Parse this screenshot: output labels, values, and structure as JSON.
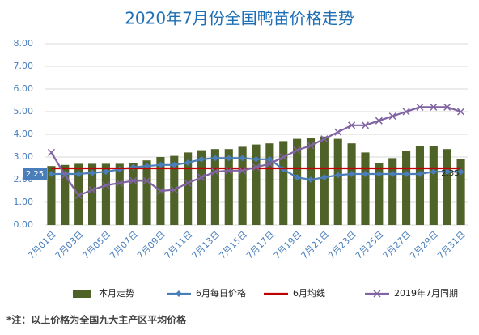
{
  "chart_data": {
    "type": "bar",
    "title": "2020年7月份全国鸭苗价格走势",
    "categories": [
      "7月01日",
      null,
      "7月03日",
      null,
      "7月05日",
      null,
      "7月07日",
      null,
      "7月09日",
      null,
      "7月11日",
      null,
      "7月13日",
      null,
      "7月15日",
      null,
      "7月17日",
      null,
      "7月19日",
      null,
      "7月21日",
      null,
      "7月23日",
      null,
      "7月25日",
      null,
      "7月27日",
      null,
      "7月29日",
      null,
      "7月31日"
    ],
    "series": [
      {
        "name": "本月走势",
        "type": "bar",
        "color": "#4f6228",
        "values": [
          2.6,
          2.65,
          2.7,
          2.7,
          2.7,
          2.7,
          2.75,
          2.85,
          3.0,
          3.05,
          3.2,
          3.3,
          3.35,
          3.35,
          3.45,
          3.55,
          3.6,
          3.7,
          3.8,
          3.85,
          3.9,
          3.8,
          3.6,
          3.2,
          2.75,
          2.95,
          3.25,
          3.5,
          3.5,
          3.35,
          2.9
        ]
      },
      {
        "name": "6月每日价格",
        "type": "line",
        "marker": "diamond",
        "color": "#4a7ebb",
        "values": [
          2.25,
          2.25,
          2.25,
          2.3,
          2.35,
          2.45,
          2.55,
          2.6,
          2.65,
          2.65,
          2.75,
          2.9,
          2.95,
          2.95,
          2.95,
          2.9,
          2.9,
          2.45,
          2.1,
          2.0,
          2.1,
          2.2,
          2.25,
          2.25,
          2.25,
          2.25,
          2.25,
          2.25,
          2.35,
          2.35,
          2.35
        ]
      },
      {
        "name": "6月均线",
        "type": "line",
        "marker": "none",
        "color": "#c00000",
        "values": [
          2.5,
          2.5,
          2.5,
          2.5,
          2.5,
          2.5,
          2.5,
          2.5,
          2.5,
          2.5,
          2.5,
          2.5,
          2.5,
          2.5,
          2.5,
          2.5,
          2.5,
          2.5,
          2.5,
          2.5,
          2.5,
          2.5,
          2.5,
          2.5,
          2.5,
          2.5,
          2.5,
          2.5,
          2.5,
          2.5,
          2.5
        ]
      },
      {
        "name": "2019年7月同期",
        "type": "line",
        "marker": "x",
        "color": "#8064a2",
        "values": [
          3.2,
          2.2,
          1.3,
          1.55,
          1.75,
          1.85,
          1.95,
          1.95,
          1.5,
          1.55,
          1.85,
          2.1,
          2.35,
          2.4,
          2.4,
          2.55,
          2.7,
          3.0,
          3.3,
          3.5,
          3.8,
          4.1,
          4.4,
          4.4,
          4.6,
          4.8,
          5.0,
          5.2,
          5.2,
          5.2,
          5.0
        ]
      }
    ],
    "ylim": [
      0,
      8
    ],
    "yticks": [
      {
        "value": 0,
        "label": "0.00"
      },
      {
        "value": 1,
        "label": "1.00"
      },
      {
        "value": 2,
        "label": "2.00"
      },
      {
        "value": 3,
        "label": "3.00"
      },
      {
        "value": 4,
        "label": "4.00"
      },
      {
        "value": 5,
        "label": "5.00"
      },
      {
        "value": 6,
        "label": "6.00"
      },
      {
        "value": 7,
        "label": "7.00"
      },
      {
        "value": 8,
        "label": "8.00"
      }
    ],
    "grid": true,
    "legend": "bottom",
    "note": "*注：以上价格为全国九大主产区平均价格"
  }
}
